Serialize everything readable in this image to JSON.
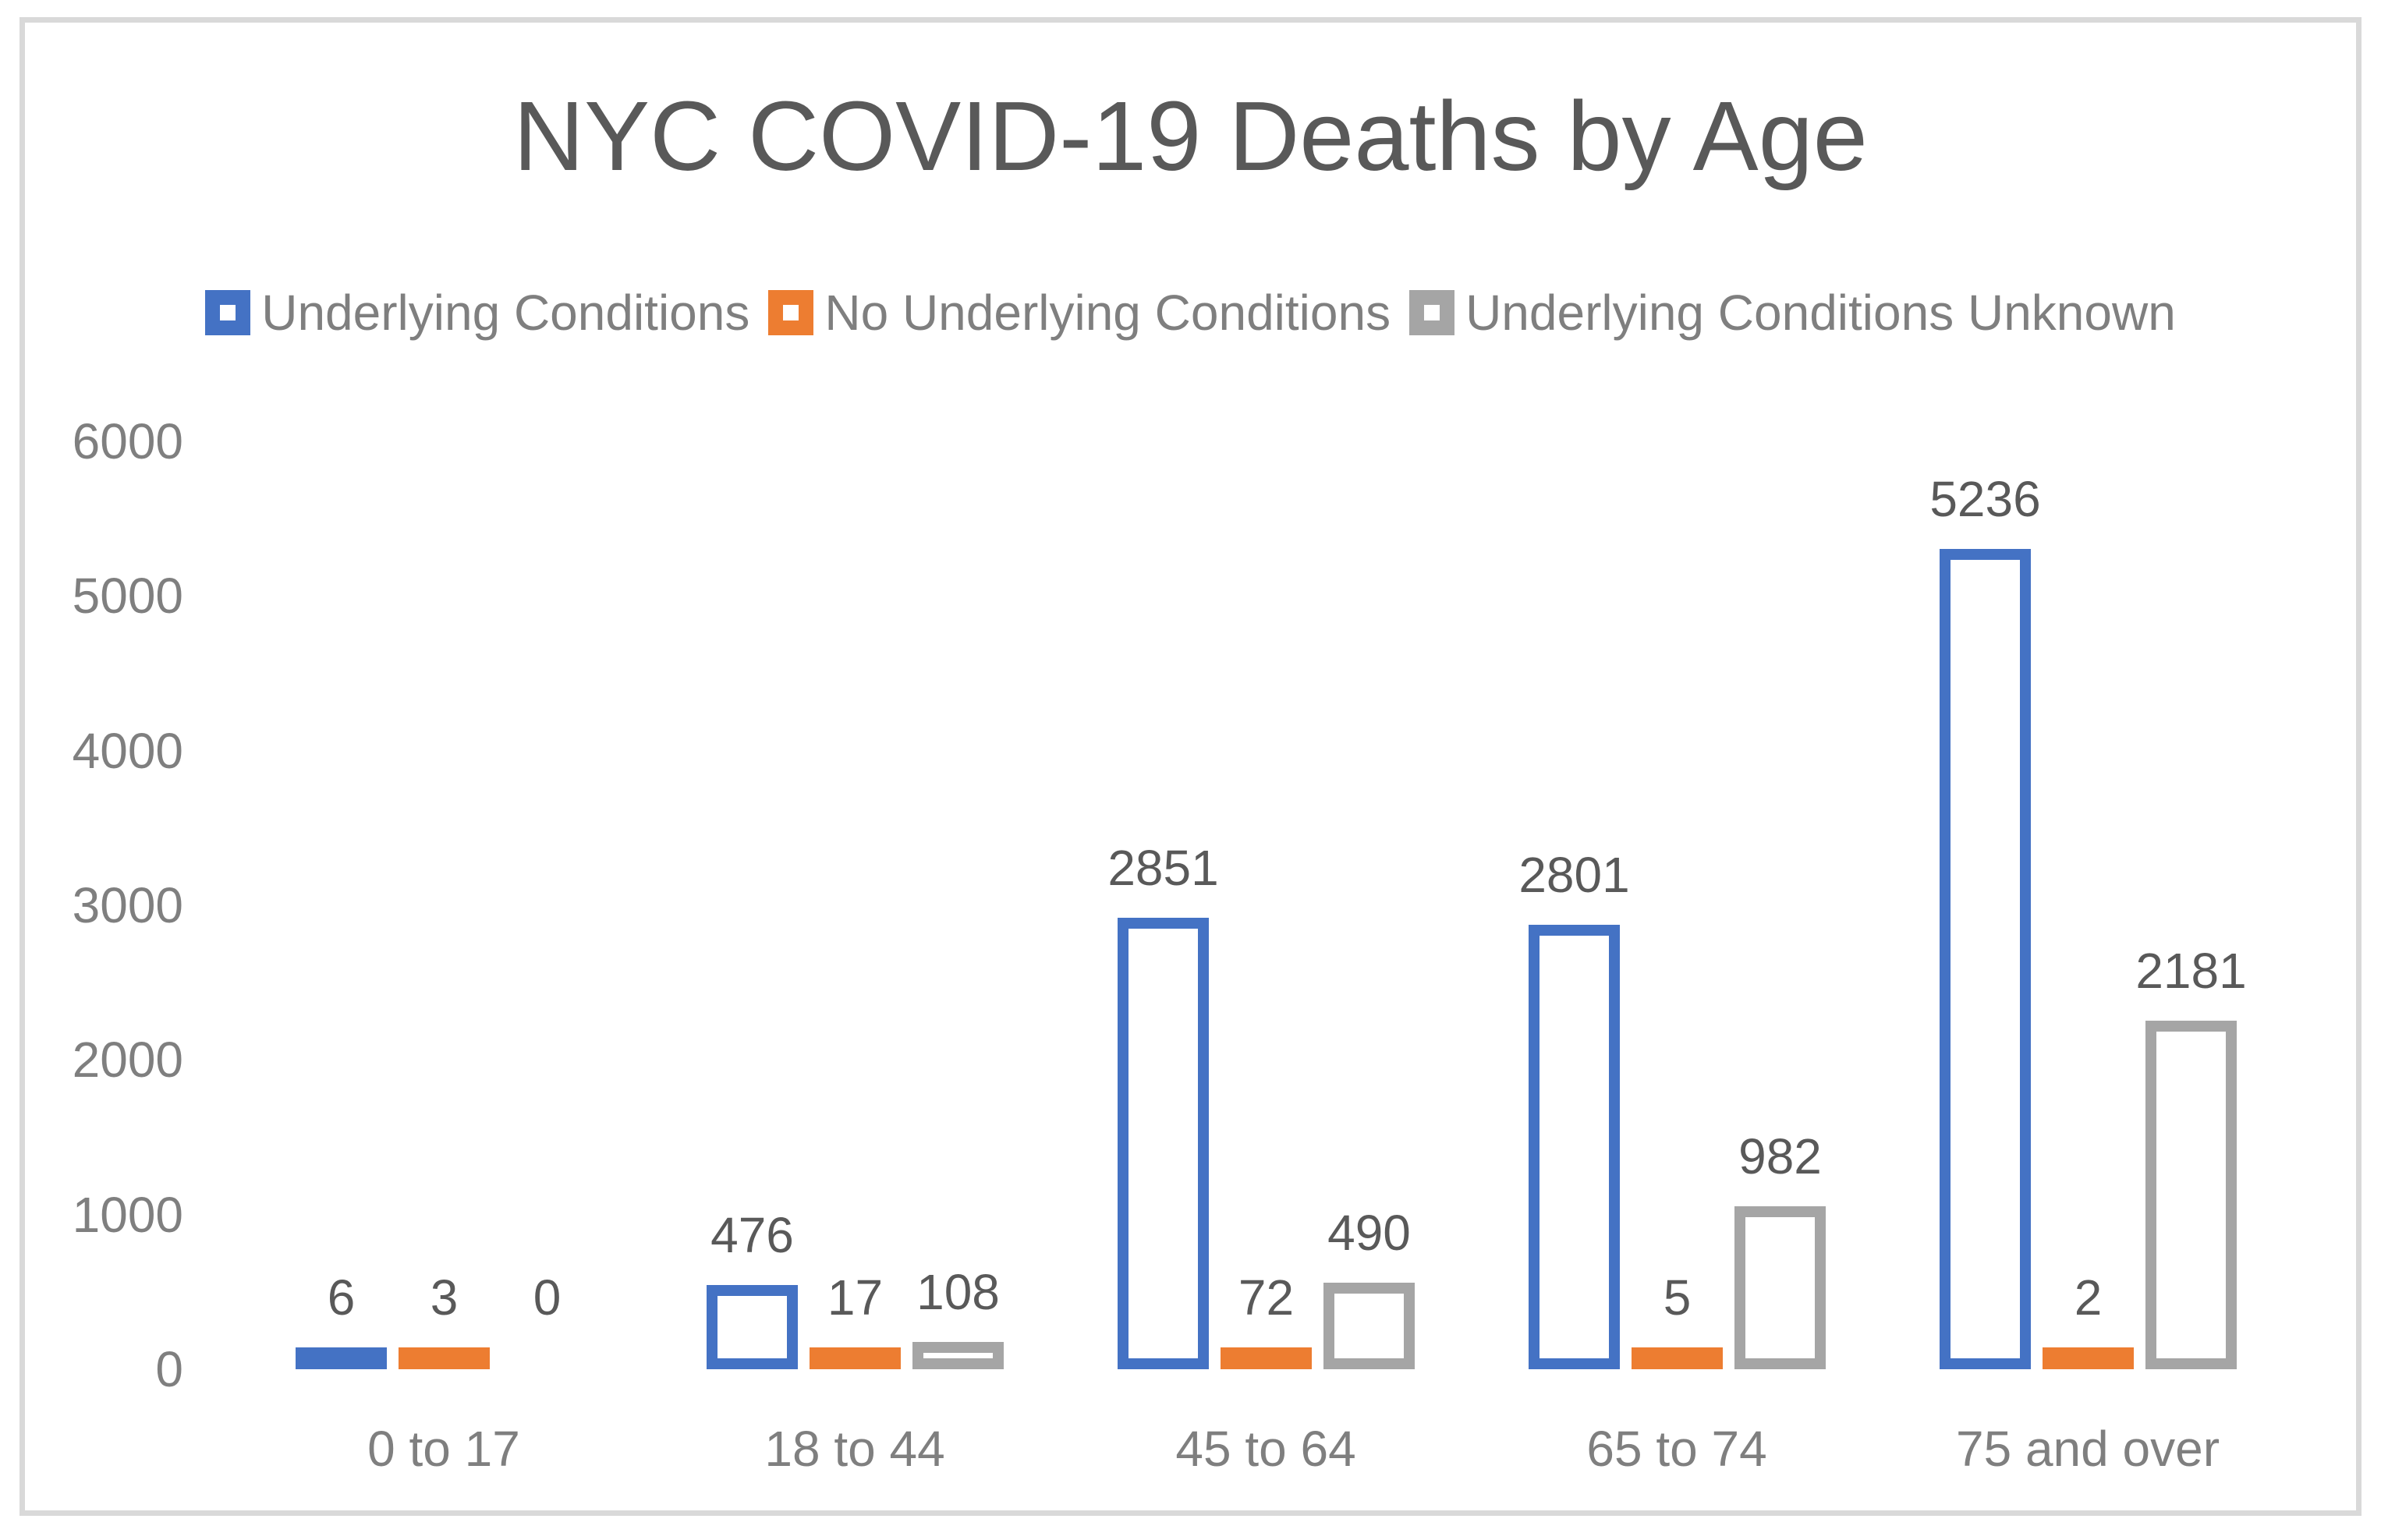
{
  "chart_data": {
    "type": "bar",
    "title": "NYC COVID-19 Deaths by Age",
    "categories": [
      "0 to 17",
      "18 to 44",
      "45 to 64",
      "65 to 74",
      "75 and over"
    ],
    "series": [
      {
        "name": "Underlying Conditions",
        "color": "#4472C4",
        "values": [
          6,
          476,
          2851,
          2801,
          5236
        ]
      },
      {
        "name": "No Underlying Conditions",
        "color": "#ED7D31",
        "values": [
          3,
          17,
          72,
          5,
          2
        ]
      },
      {
        "name": "Underlying Conditions Unknown",
        "color": "#A5A5A5",
        "values": [
          0,
          108,
          490,
          982,
          2181
        ]
      }
    ],
    "y_axis": {
      "min": 0,
      "max": 6000,
      "step": 1000,
      "tick_labels": [
        "6000",
        "5000",
        "4000",
        "3000",
        "2000",
        "1000",
        "0"
      ]
    },
    "legend_position": "top",
    "gridlines": false,
    "bar_style": "hollow-outline",
    "data_labels_shown": true
  },
  "colors": {
    "title_text": "#595959",
    "data_label_text": "#595959",
    "axis_text": "#7F7F7F",
    "legend_text": "#7F7F7F",
    "frame_border": "#D9D9D9",
    "background": "#FFFFFF",
    "series_blue": "#4472C4",
    "series_orange": "#ED7D31",
    "series_gray": "#A5A5A5"
  }
}
